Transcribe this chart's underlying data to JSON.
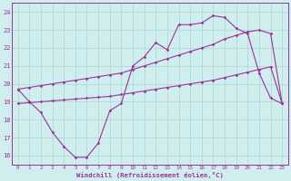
{
  "xlabel": "Windchill (Refroidissement éolien,°C)",
  "bg_color": "#d1eeee",
  "line_color": "#993399",
  "grid_color": "#a8d8d8",
  "hours": [
    0,
    1,
    2,
    3,
    4,
    5,
    6,
    7,
    8,
    9,
    10,
    11,
    12,
    13,
    14,
    15,
    16,
    17,
    18,
    19,
    20,
    21,
    22,
    23
  ],
  "line_main": [
    19.7,
    19.0,
    18.4,
    17.3,
    16.5,
    15.9,
    15.9,
    16.7,
    18.5,
    18.9,
    21.0,
    21.5,
    22.3,
    21.9,
    23.3,
    23.3,
    23.4,
    23.8,
    23.7,
    23.1,
    22.8,
    20.6,
    19.2,
    18.9
  ],
  "line_upper": [
    19.7,
    19.8,
    19.9,
    20.0,
    20.1,
    20.2,
    20.3,
    20.4,
    20.5,
    20.6,
    20.8,
    21.0,
    21.2,
    21.4,
    21.6,
    21.8,
    22.0,
    22.2,
    22.5,
    22.7,
    22.9,
    23.0,
    22.8,
    18.9
  ],
  "line_lower": [
    18.9,
    18.95,
    19.0,
    19.05,
    19.1,
    19.15,
    19.2,
    19.25,
    19.3,
    19.4,
    19.5,
    19.6,
    19.7,
    19.8,
    19.9,
    20.0,
    20.1,
    20.2,
    20.35,
    20.5,
    20.65,
    20.8,
    20.95,
    18.9
  ],
  "ylim": [
    15.5,
    24.5
  ],
  "xlim": [
    -0.5,
    23.5
  ],
  "yticks": [
    16,
    17,
    18,
    19,
    20,
    21,
    22,
    23,
    24
  ],
  "xticks": [
    0,
    1,
    2,
    3,
    4,
    5,
    6,
    7,
    8,
    9,
    10,
    11,
    12,
    13,
    14,
    15,
    16,
    17,
    18,
    19,
    20,
    21,
    22,
    23
  ]
}
